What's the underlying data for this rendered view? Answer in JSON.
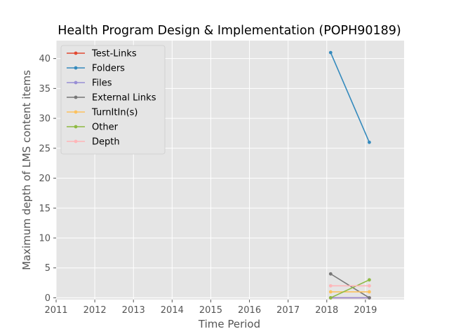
{
  "chart_data": {
    "type": "line",
    "title": "Health Program Design & Implementation (POPH90189)",
    "xlabel": "Time Period",
    "ylabel": "Maximum depth of LMS content items",
    "xlim": [
      2011,
      2020
    ],
    "ylim": [
      -0.3,
      43
    ],
    "xticks": [
      "2011",
      "2012",
      "2013",
      "2014",
      "2015",
      "2016",
      "2017",
      "2018",
      "2019"
    ],
    "yticks": [
      "0",
      "5",
      "10",
      "15",
      "20",
      "25",
      "30",
      "35",
      "40"
    ],
    "grid": true,
    "legend_position": "top-left",
    "x": [
      2018.1,
      2019.1
    ],
    "series": [
      {
        "name": "Test-Links",
        "color": "#E24A33",
        "values": [
          0,
          0
        ]
      },
      {
        "name": "Folders",
        "color": "#348ABD",
        "values": [
          41,
          26
        ]
      },
      {
        "name": "Files",
        "color": "#988ED5",
        "values": [
          0,
          0
        ]
      },
      {
        "name": "External Links",
        "color": "#777777",
        "values": [
          4,
          0
        ]
      },
      {
        "name": "TurnItIn(s)",
        "color": "#FBC15E",
        "values": [
          1,
          1
        ]
      },
      {
        "name": "Other",
        "color": "#8EBA42",
        "values": [
          0,
          3
        ]
      },
      {
        "name": "Depth",
        "color": "#FFB5B8",
        "values": [
          2,
          2
        ]
      }
    ]
  }
}
